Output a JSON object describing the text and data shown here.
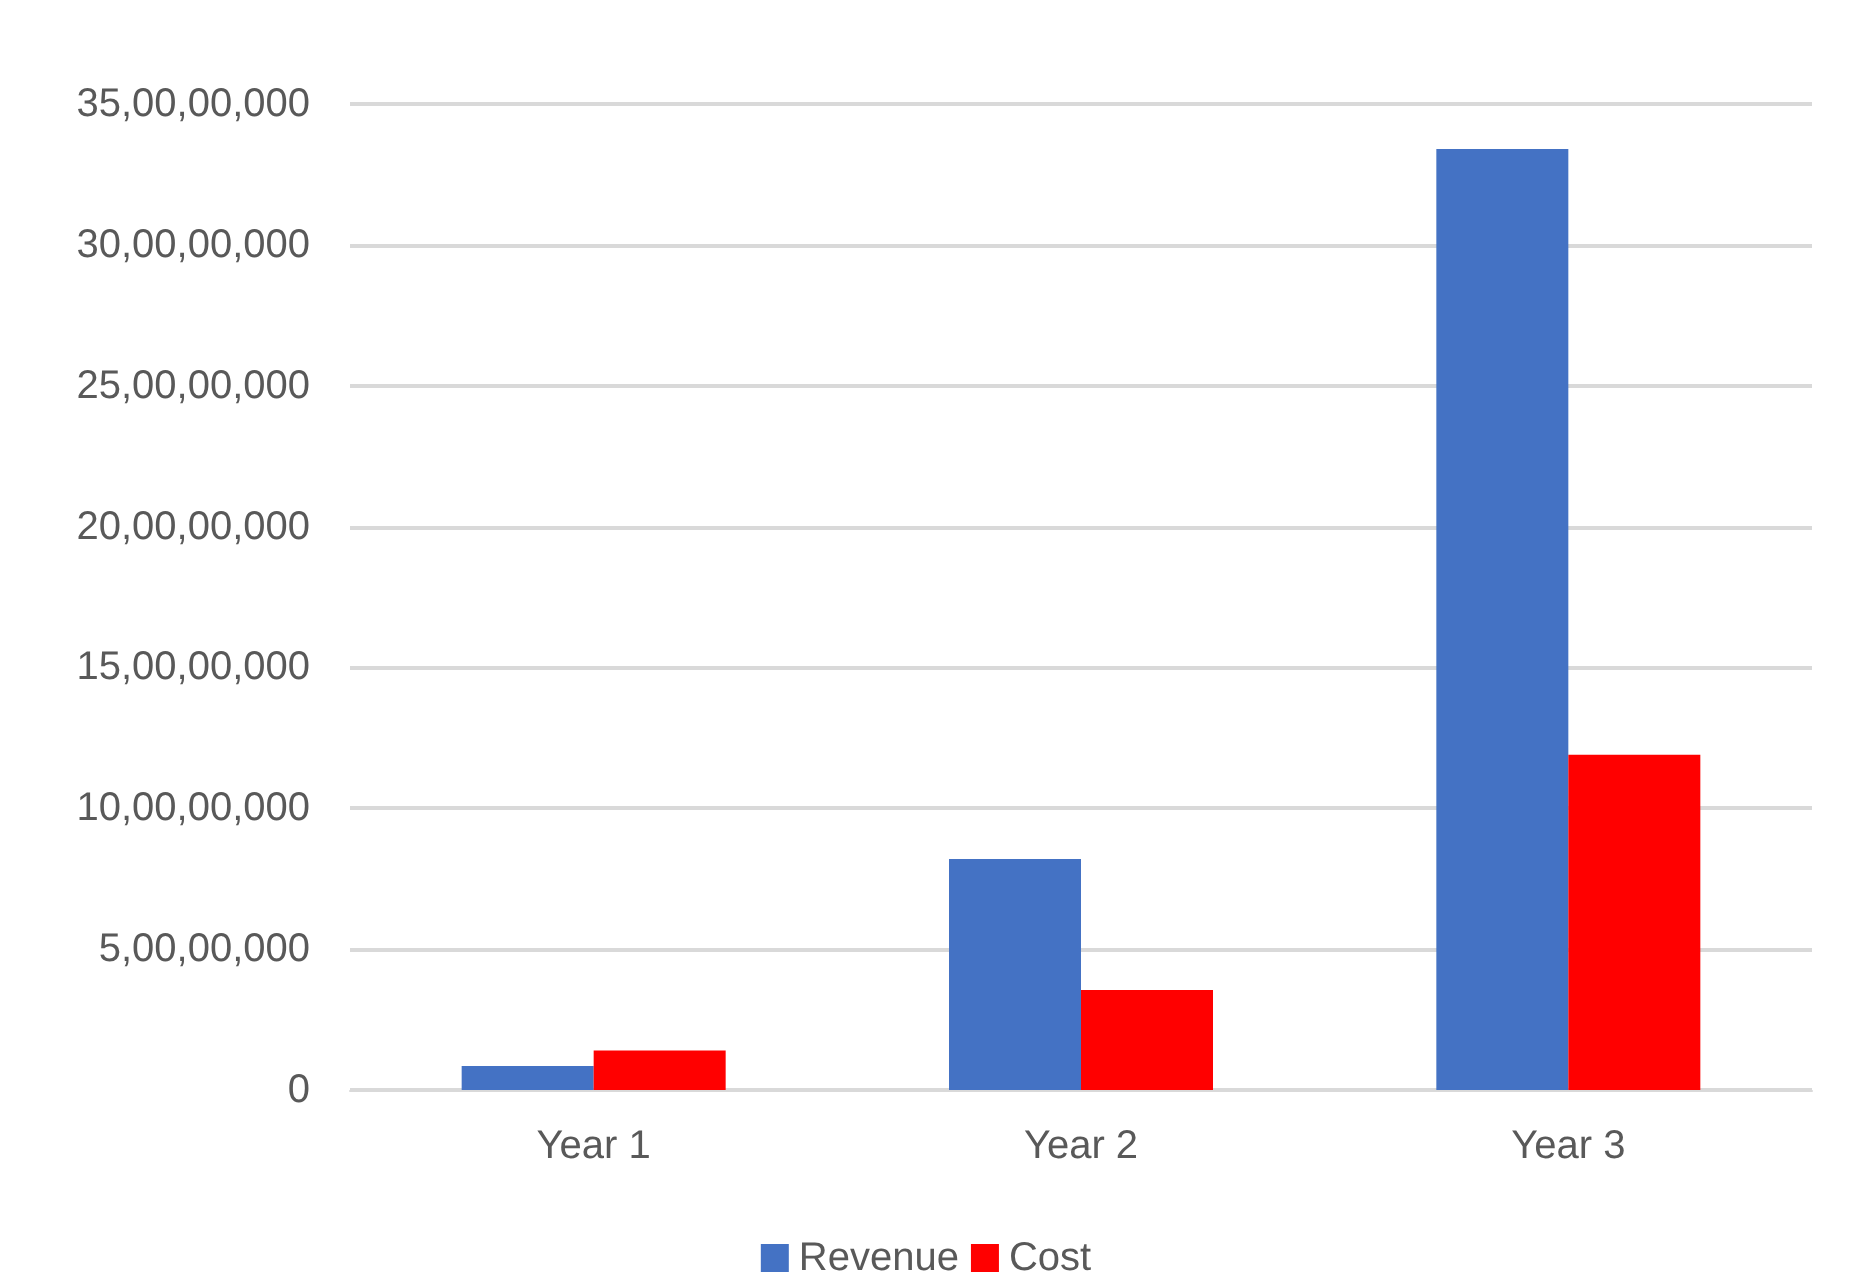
{
  "chart_data": {
    "type": "bar",
    "categories": [
      "Year 1",
      "Year 2",
      "Year 3"
    ],
    "series": [
      {
        "name": "Revenue",
        "color": "#4472c4",
        "values": [
          8500000,
          82000000,
          334000000
        ]
      },
      {
        "name": "Cost",
        "color": "#ff0000",
        "values": [
          14000000,
          35500000,
          119000000
        ]
      }
    ],
    "ylim": [
      0,
      350000000
    ],
    "yticks": [
      0,
      {
        "value": 50000000,
        "label": "5,00,00,000"
      },
      {
        "value": 100000000,
        "label": "10,00,00,000"
      },
      {
        "value": 150000000,
        "label": "15,00,00,000"
      },
      {
        "value": 200000000,
        "label": "20,00,00,000"
      },
      {
        "value": 250000000,
        "label": "25,00,00,000"
      },
      {
        "value": 300000000,
        "label": "30,00,00,000"
      },
      {
        "value": 350000000,
        "label": "35,00,00,000"
      }
    ],
    "grid": "y",
    "legend": "bottom"
  }
}
